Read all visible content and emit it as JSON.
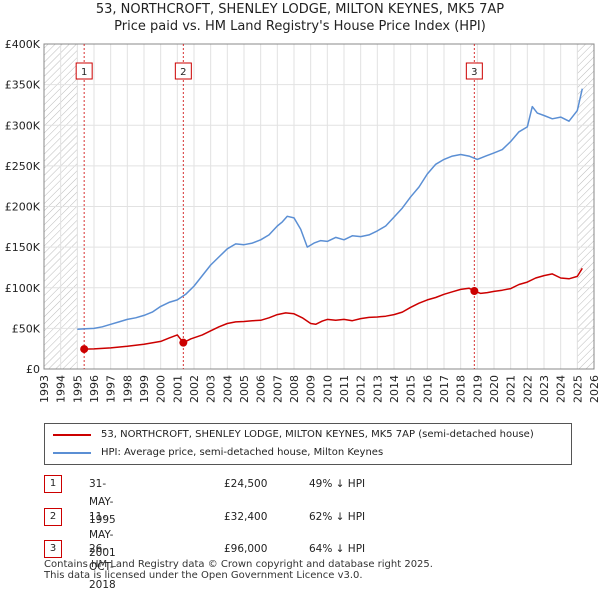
{
  "title": {
    "line1": "53, NORTHCROFT, SHENLEY LODGE, MILTON KEYNES, MK5 7AP",
    "line2": "Price paid vs. HM Land Registry's House Price Index (HPI)"
  },
  "chart_data": {
    "type": "line",
    "title": "Price paid vs. HM Land Registry's House Price Index (HPI)",
    "xlim": [
      1993,
      2026
    ],
    "ylim": [
      0,
      400000
    ],
    "x_ticks": [
      "1993",
      "1994",
      "1995",
      "1996",
      "1997",
      "1998",
      "1999",
      "2000",
      "2001",
      "2002",
      "2003",
      "2004",
      "2005",
      "2006",
      "2007",
      "2008",
      "2009",
      "2010",
      "2011",
      "2012",
      "2013",
      "2014",
      "2015",
      "2016",
      "2017",
      "2018",
      "2019",
      "2020",
      "2021",
      "2022",
      "2023",
      "2024",
      "2025",
      "2026"
    ],
    "y_ticks": [
      {
        "value": 0,
        "label": "£0"
      },
      {
        "value": 50000,
        "label": "£50K"
      },
      {
        "value": 100000,
        "label": "£100K"
      },
      {
        "value": 150000,
        "label": "£150K"
      },
      {
        "value": 200000,
        "label": "£200K"
      },
      {
        "value": 250000,
        "label": "£250K"
      },
      {
        "value": 300000,
        "label": "£300K"
      },
      {
        "value": 350000,
        "label": "£350K"
      },
      {
        "value": 400000,
        "label": "£400K"
      }
    ],
    "hatched_ranges": [
      [
        1993,
        1995.0
      ],
      [
        2025.0,
        2026
      ]
    ],
    "series": [
      {
        "name": "53, NORTHCROFT, SHENLEY LODGE, MILTON KEYNES, MK5 7AP (semi-detached house)",
        "color": "#cc0000",
        "x": [
          1995.41,
          1996.0,
          1997.0,
          1998.0,
          1999.0,
          2000.0,
          2000.5,
          2001.0,
          2001.36,
          2001.8,
          2002.5,
          2003.0,
          2003.5,
          2004.0,
          2004.5,
          2005.0,
          2005.5,
          2006.0,
          2006.5,
          2007.0,
          2007.5,
          2008.0,
          2008.5,
          2009.0,
          2009.3,
          2009.7,
          2010.0,
          2010.5,
          2011.0,
          2011.5,
          2012.0,
          2012.5,
          2013.0,
          2013.5,
          2014.0,
          2014.5,
          2015.0,
          2015.5,
          2016.0,
          2016.5,
          2017.0,
          2017.5,
          2018.0,
          2018.5,
          2018.82,
          2019.2,
          2019.6,
          2020.0,
          2020.5,
          2021.0,
          2021.5,
          2022.0,
          2022.5,
          2023.0,
          2023.5,
          2024.0,
          2024.5,
          2025.0,
          2025.3
        ],
        "values": [
          24500,
          24800,
          26000,
          28000,
          30500,
          34000,
          38000,
          42000,
          32400,
          37000,
          42000,
          47000,
          52000,
          56000,
          58000,
          58500,
          59500,
          60000,
          63000,
          67000,
          69000,
          68000,
          63000,
          56000,
          55000,
          59000,
          61000,
          60000,
          61000,
          59500,
          62000,
          63500,
          64000,
          65000,
          67000,
          70000,
          76000,
          81000,
          85000,
          88000,
          92000,
          95000,
          98000,
          99500,
          96000,
          93000,
          94000,
          95500,
          97000,
          99000,
          104000,
          107000,
          112000,
          115000,
          117000,
          112000,
          111000,
          114000,
          124000
        ]
      },
      {
        "name": "HPI: Average price, semi-detached house, Milton Keynes",
        "color": "#5b8fd4",
        "x": [
          1995.0,
          1995.5,
          1996.0,
          1996.5,
          1997.0,
          1997.5,
          1998.0,
          1998.5,
          1999.0,
          1999.5,
          2000.0,
          2000.5,
          2001.0,
          2001.5,
          2002.0,
          2002.5,
          2003.0,
          2003.5,
          2004.0,
          2004.5,
          2005.0,
          2005.5,
          2006.0,
          2006.5,
          2007.0,
          2007.3,
          2007.6,
          2008.0,
          2008.4,
          2008.8,
          2009.2,
          2009.6,
          2010.0,
          2010.5,
          2011.0,
          2011.5,
          2012.0,
          2012.5,
          2013.0,
          2013.5,
          2014.0,
          2014.5,
          2015.0,
          2015.5,
          2016.0,
          2016.5,
          2017.0,
          2017.5,
          2018.0,
          2018.5,
          2019.0,
          2019.5,
          2020.0,
          2020.5,
          2021.0,
          2021.5,
          2022.0,
          2022.3,
          2022.6,
          2023.0,
          2023.5,
          2024.0,
          2024.5,
          2025.0,
          2025.3
        ],
        "values": [
          49000,
          49500,
          50000,
          52000,
          55000,
          58000,
          61000,
          63000,
          66000,
          70000,
          77000,
          82000,
          85000,
          92000,
          102000,
          115000,
          128000,
          138000,
          148000,
          154000,
          153000,
          155000,
          159000,
          165000,
          176000,
          181000,
          188000,
          186000,
          172000,
          150000,
          155000,
          158000,
          157000,
          162000,
          159000,
          164000,
          163000,
          165000,
          170000,
          176000,
          187000,
          198000,
          212000,
          224000,
          240000,
          252000,
          258000,
          262000,
          264000,
          262000,
          258000,
          262000,
          266000,
          270000,
          280000,
          292000,
          298000,
          323000,
          315000,
          312000,
          308000,
          310000,
          305000,
          318000,
          345000
        ]
      }
    ],
    "sales": [
      {
        "label": "1",
        "x": 1995.41,
        "value": 24500
      },
      {
        "label": "2",
        "x": 2001.36,
        "value": 32400
      },
      {
        "label": "3",
        "x": 2018.82,
        "value": 96000
      }
    ]
  },
  "legend": {
    "property": "53, NORTHCROFT, SHENLEY LODGE, MILTON KEYNES, MK5 7AP (semi-detached house)",
    "hpi": "HPI: Average price, semi-detached house, Milton Keynes"
  },
  "transactions": [
    {
      "num": "1",
      "date": "31-MAY-1995",
      "price": "£24,500",
      "hpi": "49% ↓ HPI"
    },
    {
      "num": "2",
      "date": "11-MAY-2001",
      "price": "£32,400",
      "hpi": "62% ↓ HPI"
    },
    {
      "num": "3",
      "date": "26-OCT-2018",
      "price": "£96,000",
      "hpi": "64% ↓ HPI"
    }
  ],
  "footer": {
    "line1": "Contains HM Land Registry data © Crown copyright and database right 2025.",
    "line2": "This data is licensed under the Open Government Licence v3.0."
  }
}
